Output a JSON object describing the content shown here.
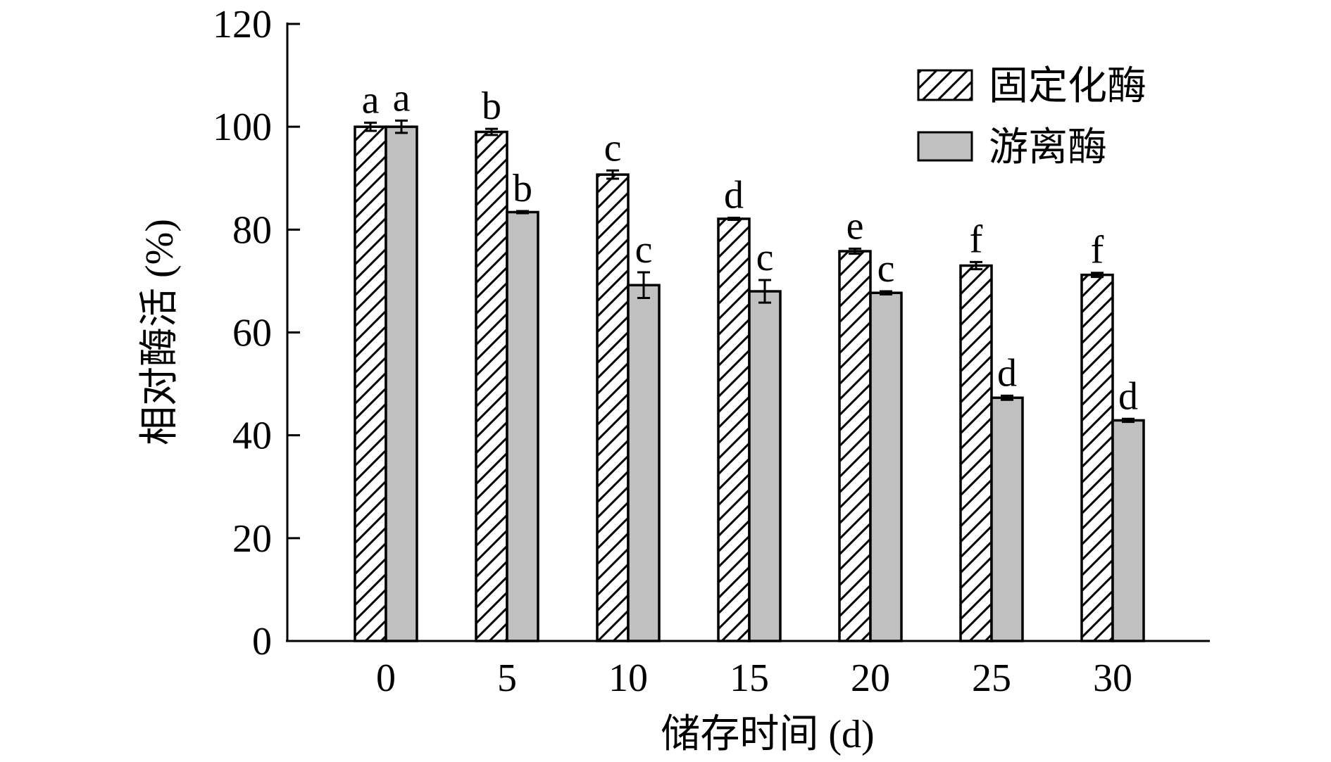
{
  "chart_data": {
    "type": "bar",
    "xlabel": "储存时间 (d)",
    "ylabel": "相对酶活 (%)",
    "ylim": [
      0,
      120
    ],
    "yticks": [
      "0",
      "20",
      "40",
      "60",
      "80",
      "100",
      "120"
    ],
    "categories": [
      "0",
      "5",
      "10",
      "15",
      "20",
      "25",
      "30"
    ],
    "legend_position": "top-right",
    "grid": false,
    "series": [
      {
        "name": "固定化酶",
        "pattern": "hatched",
        "color": "#ffffff",
        "values": [
          100,
          99,
          90.7,
          82.1,
          75.8,
          73,
          71.2
        ],
        "errors": [
          0.8,
          0.6,
          0.8,
          0.2,
          0.5,
          0.7,
          0.4
        ],
        "labels": [
          "a",
          "b",
          "c",
          "d",
          "e",
          "f",
          "f"
        ]
      },
      {
        "name": "游离酶",
        "pattern": "solid",
        "color": "#c0c0c0",
        "values": [
          100,
          83.4,
          69.2,
          68,
          67.7,
          47.3,
          42.9
        ],
        "errors": [
          1.2,
          0.2,
          2.5,
          2.2,
          0.3,
          0.4,
          0.3
        ],
        "labels": [
          "a",
          "b",
          "c",
          "c",
          "c",
          "d",
          "d"
        ]
      }
    ]
  }
}
